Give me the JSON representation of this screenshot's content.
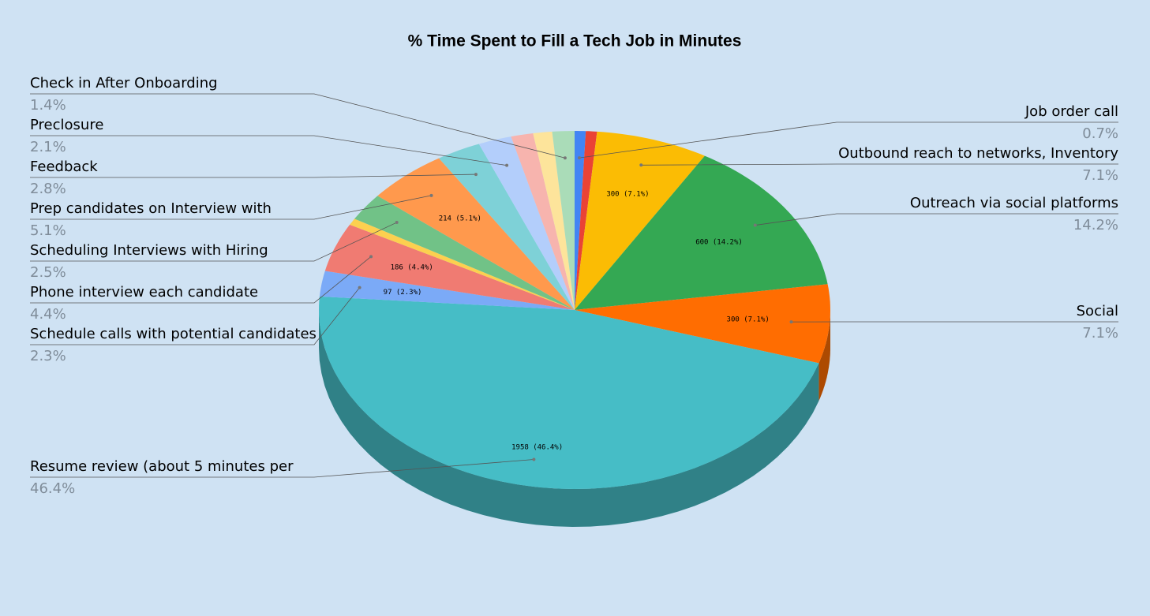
{
  "chart_data": {
    "type": "pie3d",
    "title": "% Time Spent to Fill a Tech Job in Minutes",
    "categories": [
      "Job order call",
      null,
      "Outbound reach to networks, Inventory",
      "Outreach via social platforms",
      "Social",
      "Resume review (about 5 minutes per",
      "Schedule calls with potential candidates",
      "Phone interview each candidate",
      null,
      "Scheduling Interviews with Hiring",
      "Prep candidates on Interview with",
      "Feedback",
      "Preclosure",
      null,
      null,
      "Check in After Onboarding"
    ],
    "values": [
      0.7,
      0.7,
      7.1,
      14.2,
      7.1,
      46.4,
      2.3,
      4.4,
      0.6,
      2.5,
      5.1,
      2.8,
      2.1,
      1.4,
      1.2,
      1.4
    ],
    "value_labels": [
      "0.7%",
      null,
      "7.1%",
      "14.2%",
      "7.1%",
      "46.4%",
      "2.3%",
      "4.4%",
      null,
      "2.5%",
      "5.1%",
      "2.8%",
      "2.1%",
      null,
      null,
      "1.4%"
    ],
    "inner_labels": [
      null,
      null,
      "300 (7.1%)",
      "600 (14.2%)",
      "300 (7.1%)",
      "1958 (46.4%)",
      "97 (2.3%)",
      "186 (4.4%)",
      null,
      null,
      "214 (5.1%)",
      null,
      null,
      null,
      null,
      null
    ],
    "colors": [
      "#4285f4",
      "#ea4335",
      "#fbbc04",
      "#34a853",
      "#ff6d01",
      "#46bdc6",
      "#7baaf7",
      "#f07b72",
      "#fcd04f",
      "#71c287",
      "#ff994d",
      "#7ed1d7",
      "#b3cefb",
      "#f7b4ae",
      "#fde49b",
      "#aadcb8"
    ]
  }
}
